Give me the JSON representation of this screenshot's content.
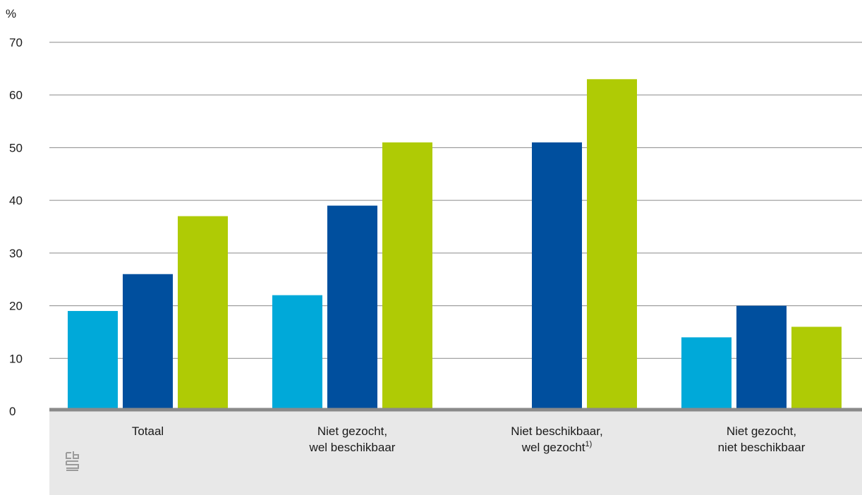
{
  "chart_data": {
    "type": "bar",
    "ylabel": "%",
    "ylim": [
      0,
      70
    ],
    "yticks": [
      0,
      10,
      20,
      30,
      40,
      50,
      60,
      70
    ],
    "grid": true,
    "categories": [
      {
        "lines": [
          "Totaal"
        ],
        "footnote": ""
      },
      {
        "lines": [
          "Niet gezocht,",
          "wel beschikbaar"
        ],
        "footnote": ""
      },
      {
        "lines": [
          "Niet beschikbaar,",
          "wel gezocht"
        ],
        "footnote": "1)"
      },
      {
        "lines": [
          "Niet gezocht,",
          "niet beschikbaar"
        ],
        "footnote": ""
      }
    ],
    "series": [
      {
        "color": "#00a9d9",
        "values": [
          19,
          22,
          null,
          14
        ]
      },
      {
        "color": "#004f9e",
        "values": [
          26,
          39,
          51,
          20
        ]
      },
      {
        "color": "#afcb05",
        "values": [
          37,
          51,
          63,
          16
        ]
      }
    ]
  },
  "colors": {
    "axis": "#8a8a8a",
    "label_band": "#e8e8e8",
    "logo": "#9b9b9b"
  },
  "logo": {
    "icon": "cbs-logo-icon",
    "text": "cbs"
  }
}
